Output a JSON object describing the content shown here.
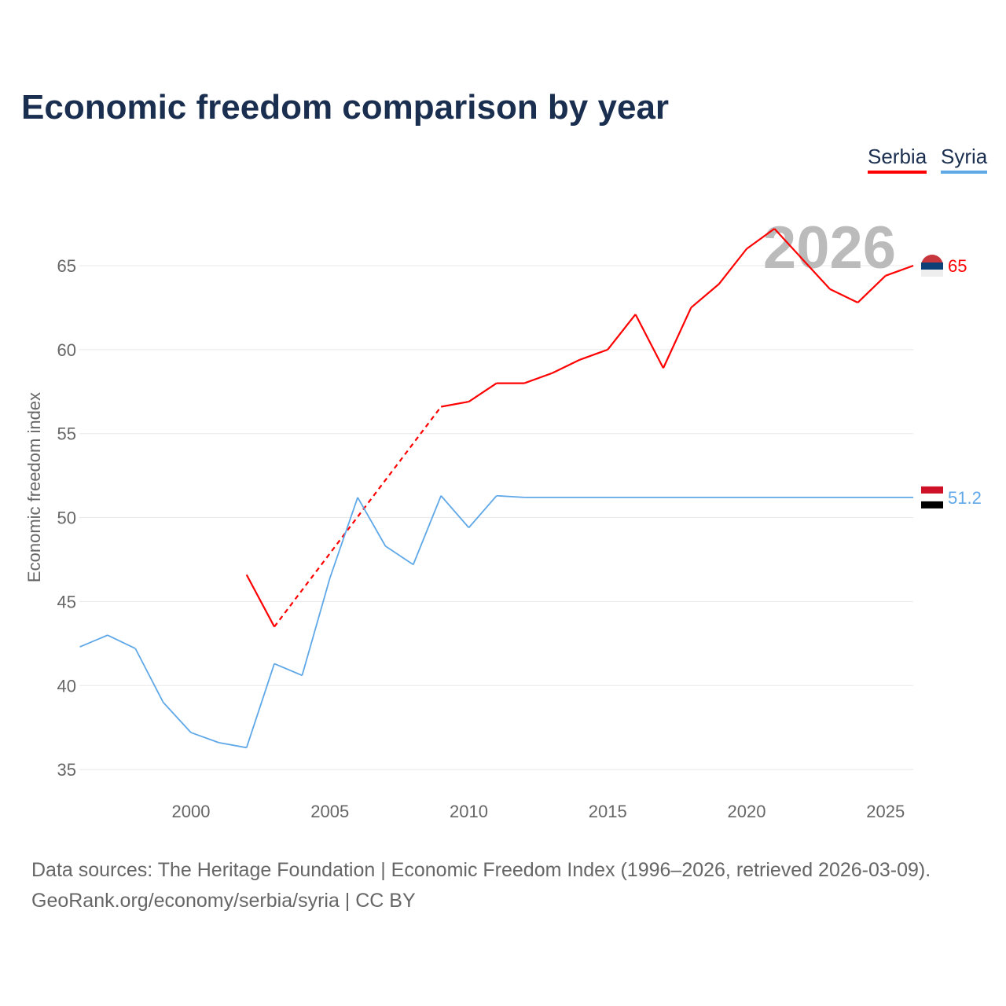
{
  "chart_data": {
    "type": "line",
    "title": "Economic freedom comparison by year",
    "xlabel": "",
    "ylabel": "Economic freedom index",
    "xlim": [
      1996,
      2026
    ],
    "ylim": [
      33.5,
      68
    ],
    "xticks": [
      2000,
      2005,
      2010,
      2015,
      2020,
      2025
    ],
    "yticks": [
      35,
      40,
      45,
      50,
      55,
      60,
      65
    ],
    "grid": true,
    "legend_position": "top-right",
    "watermark_year": "2026",
    "series": [
      {
        "name": "Serbia",
        "color": "#ff0000",
        "end_label": "65",
        "x": [
          2002,
          2003,
          2009,
          2010,
          2011,
          2012,
          2013,
          2014,
          2015,
          2016,
          2017,
          2018,
          2019,
          2020,
          2021,
          2022,
          2023,
          2024,
          2025,
          2026
        ],
        "y": [
          46.6,
          43.5,
          56.6,
          56.9,
          58.0,
          58.0,
          58.6,
          59.4,
          60.0,
          62.1,
          58.9,
          62.5,
          63.9,
          66.0,
          67.2,
          65.4,
          63.6,
          62.8,
          64.4,
          65.0
        ],
        "dashed_gap": [
          2003,
          2009
        ]
      },
      {
        "name": "Syria",
        "color": "#5fa8e8",
        "end_label": "51.2",
        "x": [
          1996,
          1997,
          1998,
          1999,
          2000,
          2001,
          2002,
          2003,
          2004,
          2005,
          2006,
          2007,
          2008,
          2009,
          2010,
          2011,
          2012,
          2026
        ],
        "y": [
          42.3,
          43.0,
          42.2,
          39.0,
          37.2,
          36.6,
          36.3,
          41.3,
          40.6,
          46.4,
          51.2,
          48.3,
          47.2,
          51.3,
          49.4,
          51.3,
          51.2,
          51.2
        ]
      }
    ]
  },
  "footer": {
    "line1": "Data sources: The Heritage Foundation | Economic Freedom Index (1996–2026, retrieved 2026-03-09).",
    "line2": "GeoRank.org/economy/serbia/syria | CC BY"
  }
}
